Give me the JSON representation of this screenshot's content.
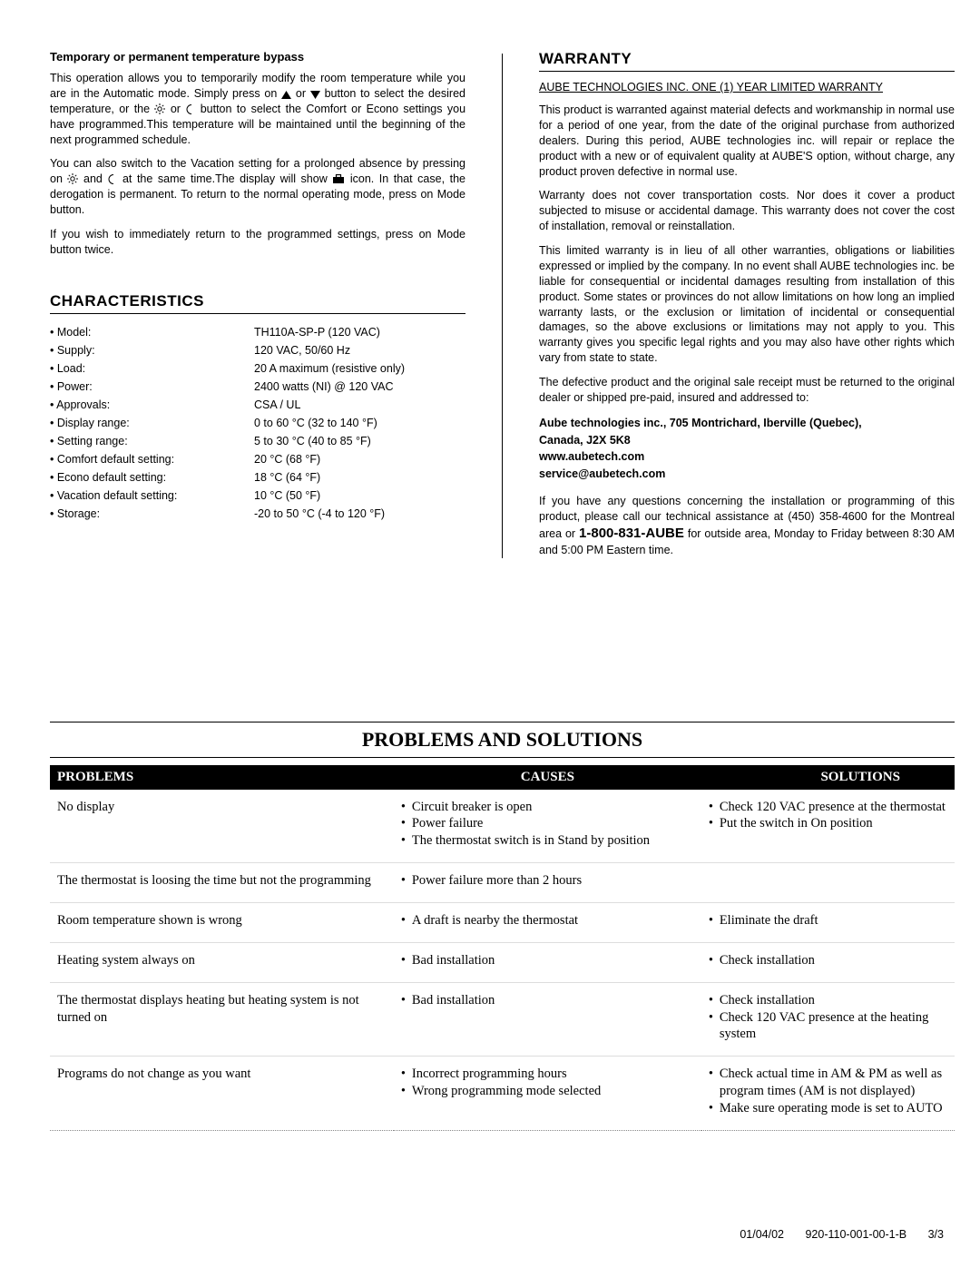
{
  "left": {
    "bypass_heading": "Temporary or permanent temperature bypass",
    "bypass_p1_a": "This operation allows you to temporarily modify the room temperature while you are in the Automatic mode. Simply press on ",
    "bypass_p1_b": " or ",
    "bypass_p1_c": " button to select the desired temperature, or the ",
    "bypass_p1_d": " or ",
    "bypass_p1_e": " button to select the Comfort or Econo settings you have programmed.This temperature will be maintained until the beginning of the next programmed schedule.",
    "bypass_p2_a": "You can also switch to the Vacation setting for a prolonged absence by pressing on ",
    "bypass_p2_b": " and ",
    "bypass_p2_c": " at the same time.The display will show ",
    "bypass_p2_d": " icon. In that case, the derogation is permanent. To return to the normal operating mode, press on Mode button.",
    "bypass_p3": "If you wish to immediately return to the programmed settings, press on Mode button twice.",
    "char_heading": "CHARACTERISTICS",
    "char_rows": [
      {
        "label": "• Model:",
        "value": "TH110A-SP-P (120 VAC)"
      },
      {
        "label": "• Supply:",
        "value": "120 VAC, 50/60 Hz"
      },
      {
        "label": "• Load:",
        "value": "20 A maximum (resistive only)"
      },
      {
        "label": "• Power:",
        "value": "2400 watts (NI) @ 120 VAC"
      },
      {
        "label": "• Approvals:",
        "value": "CSA / UL"
      },
      {
        "label": "• Display range:",
        "value": "0 to 60 °C (32 to 140 °F)"
      },
      {
        "label": "• Setting range:",
        "value": "5 to 30 °C (40 to 85 °F)"
      },
      {
        "label": "• Comfort default setting:",
        "value": "20 °C (68 °F)"
      },
      {
        "label": "• Econo default setting:",
        "value": "18 °C (64 °F)"
      },
      {
        "label": "• Vacation default setting:",
        "value": "10 °C (50 °F)"
      },
      {
        "label": "• Storage:",
        "value": "-20 to 50 °C (-4 to 120 °F)"
      }
    ]
  },
  "right": {
    "warranty_heading": "WARRANTY",
    "warranty_sub": "AUBE TECHNOLOGIES INC. ONE (1) YEAR LIMITED WARRANTY",
    "p1": "This product is warranted against material defects and workmanship in normal use for a period of one year, from the date of the original purchase from authorized dealers. During this period, AUBE technologies inc. will repair or replace the product with a new or of equivalent quality at AUBE'S option, without charge, any product proven defective in normal use.",
    "p2": "Warranty does not cover transportation costs. Nor does it cover a product subjected to misuse or accidental damage. This warranty does not cover the cost of installation, removal or reinstallation.",
    "p3": "This limited warranty is in lieu of all other warranties, obligations or liabilities expressed or implied by the company. In no event shall AUBE technologies inc. be liable for consequential or incidental damages resulting from installation of this product. Some states or provinces do not allow limitations on how long an implied warranty lasts, or the exclusion or limitation of incidental or consequential damages, so the above exclusions or limitations may not apply to you. This warranty gives you specific legal rights and you may also have other rights which vary from state to state.",
    "p4": "The defective product and the original sale receipt must be returned to the original dealer or shipped pre-paid, insured and addressed to:",
    "contact_line1": "Aube technologies inc., 705 Montrichard, Iberville (Quebec),",
    "contact_line2": "Canada, J2X 5K8",
    "contact_line3": "www.aubetech.com",
    "contact_line4": "service@aubetech.com",
    "p5_a": "If you have any questions concerning the installation or programming of this product, please call our technical assistance at (450) 358-4600 for the Montreal area or ",
    "phone": "1-800-831-AUBE",
    "p5_b": " for outside area, Monday to Friday between 8:30 AM and 5:00 PM Eastern time."
  },
  "ps": {
    "title": "PROBLEMS AND SOLUTIONS",
    "headers": [
      "PROBLEMS",
      "CAUSES",
      "SOLUTIONS"
    ],
    "rows": [
      {
        "problem": "No display",
        "causes": [
          "Circuit breaker is open",
          "Power failure",
          "The thermostat switch is in Stand by position"
        ],
        "solutions": [
          "Check 120 VAC presence at the thermostat",
          "Put the switch in On position"
        ]
      },
      {
        "problem": "The thermostat is loosing the time but not the programming",
        "causes": [
          "Power failure more than 2 hours"
        ],
        "solutions": []
      },
      {
        "problem": "Room temperature shown is wrong",
        "causes": [
          "A draft is nearby the thermostat"
        ],
        "solutions": [
          "Eliminate the draft"
        ]
      },
      {
        "problem": "Heating system always on",
        "causes": [
          "Bad installation"
        ],
        "solutions": [
          "Check installation"
        ]
      },
      {
        "problem": "The thermostat displays heating but heating system is not turned on",
        "causes": [
          "Bad installation"
        ],
        "solutions": [
          "Check installation",
          "Check 120 VAC presence at the heating system"
        ]
      },
      {
        "problem": "Programs do not change as you want",
        "causes": [
          "Incorrect programming hours",
          "Wrong programming mode selected"
        ],
        "solutions": [
          "Check actual time in AM & PM as well as program times (AM is not displayed)",
          "Make sure operating mode is set to AUTO"
        ]
      }
    ]
  },
  "footer": {
    "date": "01/04/02",
    "doc": "920-110-001-00-1-B",
    "page": "3/3"
  }
}
